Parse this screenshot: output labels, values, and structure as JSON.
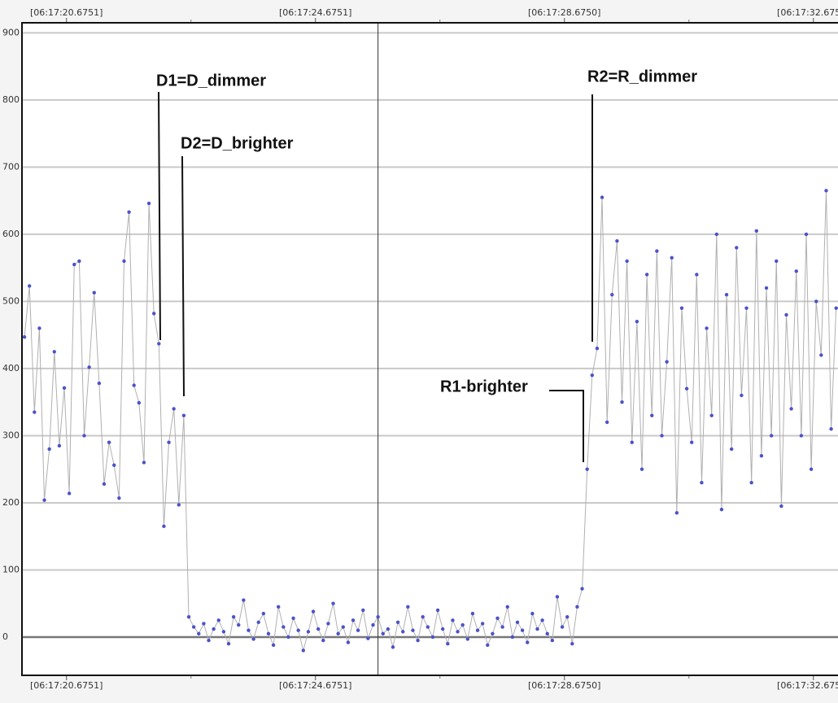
{
  "chart_data": {
    "type": "line",
    "x": [
      20.0,
      20.08,
      20.16,
      20.24,
      20.32,
      20.4,
      20.48,
      20.56,
      20.64,
      20.72,
      20.8,
      20.88,
      20.96,
      21.04,
      21.12,
      21.2,
      21.28,
      21.36,
      21.44,
      21.52,
      21.6,
      21.68,
      21.76,
      21.84,
      21.92,
      22.0,
      22.08,
      22.16,
      22.24,
      22.32,
      22.4,
      22.48,
      22.56,
      22.64,
      22.72,
      22.8,
      22.88,
      22.96,
      23.04,
      23.12,
      23.2,
      23.28,
      23.36,
      23.44,
      23.52,
      23.6,
      23.68,
      23.76,
      23.84,
      23.92,
      24.0,
      24.08,
      24.16,
      24.24,
      24.32,
      24.4,
      24.48,
      24.56,
      24.64,
      24.72,
      24.8,
      24.88,
      24.96,
      25.04,
      25.12,
      25.2,
      25.28,
      25.36,
      25.44,
      25.52,
      25.6,
      25.68,
      25.76,
      25.84,
      25.92,
      26.0,
      26.08,
      26.16,
      26.24,
      26.32,
      26.4,
      26.48,
      26.56,
      26.64,
      26.72,
      26.8,
      26.88,
      26.96,
      27.04,
      27.12,
      27.2,
      27.28,
      27.36,
      27.44,
      27.52,
      27.6,
      27.68,
      27.76,
      27.84,
      27.92,
      28.0,
      28.08,
      28.16,
      28.24,
      28.32,
      28.4,
      28.48,
      28.56,
      28.64,
      28.72,
      28.8,
      28.88,
      28.96,
      29.04,
      29.12,
      29.2,
      29.28,
      29.36,
      29.44,
      29.52,
      29.6,
      29.68,
      29.76,
      29.84,
      29.92,
      30.0,
      30.08,
      30.16,
      30.24,
      30.32,
      30.4,
      30.48,
      30.56,
      30.64,
      30.72,
      30.8,
      30.88,
      30.96,
      31.04,
      31.12,
      31.2,
      31.28,
      31.36,
      31.44,
      31.52,
      31.6,
      31.68,
      31.76,
      31.84,
      31.92,
      32.0,
      32.08,
      32.16,
      32.24,
      32.32,
      32.4,
      32.48,
      32.56,
      32.64,
      32.72,
      32.8,
      32.88,
      32.96,
      33.04
    ],
    "values": [
      447,
      523,
      335,
      460,
      204,
      280,
      425,
      285,
      371,
      214,
      555,
      560,
      300,
      402,
      513,
      378,
      228,
      290,
      256,
      207,
      560,
      633,
      375,
      349,
      260,
      646,
      482,
      437,
      165,
      290,
      340,
      197,
      330,
      30,
      15,
      5,
      20,
      -5,
      12,
      25,
      8,
      -10,
      30,
      18,
      55,
      10,
      -3,
      22,
      35,
      5,
      -12,
      45,
      15,
      0,
      28,
      10,
      -20,
      8,
      38,
      12,
      -5,
      20,
      50,
      5,
      15,
      -8,
      25,
      10,
      40,
      -2,
      18,
      30,
      5,
      12,
      -15,
      22,
      8,
      45,
      10,
      -5,
      30,
      15,
      0,
      40,
      12,
      -10,
      25,
      8,
      18,
      -3,
      35,
      10,
      20,
      -12,
      5,
      28,
      15,
      45,
      0,
      22,
      10,
      -8,
      35,
      12,
      25,
      5,
      -5,
      60,
      15,
      30,
      -10,
      45,
      72,
      250,
      390,
      430,
      655,
      320,
      510,
      590,
      350,
      560,
      290,
      470,
      250,
      540,
      330,
      575,
      300,
      410,
      565,
      185,
      490,
      370,
      290,
      540,
      230,
      460,
      330,
      600,
      190,
      510,
      280,
      580,
      360,
      490,
      230,
      605,
      270,
      520,
      300,
      560,
      195,
      480,
      340,
      545,
      300,
      600,
      250,
      500,
      420,
      665,
      310,
      490
    ],
    "color": "#4b52c9",
    "line_color": "#b0b0b0",
    "xlim": [
      19.96,
      33.07
    ],
    "xticks": [
      {
        "value": 20.6751,
        "label": "[06:17:20.6751]"
      },
      {
        "value": 24.6751,
        "label": "[06:17:24.6751]"
      },
      {
        "value": 28.675,
        "label": "[06:17:28.6750]"
      },
      {
        "value": 32.675,
        "label": "[06:17:32.6750]"
      }
    ],
    "ylim": [
      -57,
      915
    ],
    "yticks": [
      0,
      100,
      200,
      300,
      400,
      500,
      600,
      700,
      800,
      900
    ],
    "grid": true,
    "cursor_x": 25.68,
    "annotations": [
      {
        "text": "D1=D_dimmer"
      },
      {
        "text": "D2=D_brighter"
      },
      {
        "text": "R2=R_dimmer"
      },
      {
        "text": "R1-brighter"
      }
    ]
  }
}
